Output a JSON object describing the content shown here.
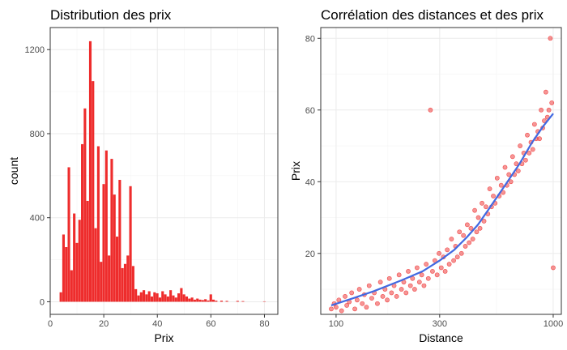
{
  "chart_data": [
    {
      "type": "bar",
      "title": "Distribution des prix",
      "xlabel": "Prix",
      "ylabel": "count",
      "xlim": [
        0,
        85
      ],
      "ylim": [
        -60,
        1305
      ],
      "x_ticks": [
        "0",
        "20",
        "40",
        "60",
        "80"
      ],
      "y_ticks": [
        "0",
        "400",
        "800",
        "1200"
      ],
      "bar_color": "#ee2c2c",
      "bin_width": 1,
      "bins": [
        {
          "x": 4,
          "count": 45
        },
        {
          "x": 5,
          "count": 320
        },
        {
          "x": 6,
          "count": 260
        },
        {
          "x": 7,
          "count": 640
        },
        {
          "x": 8,
          "count": 150
        },
        {
          "x": 9,
          "count": 420
        },
        {
          "x": 10,
          "count": 280
        },
        {
          "x": 11,
          "count": 390
        },
        {
          "x": 12,
          "count": 750
        },
        {
          "x": 13,
          "count": 920
        },
        {
          "x": 14,
          "count": 480
        },
        {
          "x": 15,
          "count": 1240
        },
        {
          "x": 16,
          "count": 1050
        },
        {
          "x": 17,
          "count": 350
        },
        {
          "x": 18,
          "count": 740
        },
        {
          "x": 19,
          "count": 190
        },
        {
          "x": 20,
          "count": 560
        },
        {
          "x": 21,
          "count": 720
        },
        {
          "x": 22,
          "count": 220
        },
        {
          "x": 23,
          "count": 680
        },
        {
          "x": 24,
          "count": 510
        },
        {
          "x": 25,
          "count": 310
        },
        {
          "x": 26,
          "count": 580
        },
        {
          "x": 27,
          "count": 160
        },
        {
          "x": 28,
          "count": 180
        },
        {
          "x": 29,
          "count": 220
        },
        {
          "x": 30,
          "count": 550
        },
        {
          "x": 31,
          "count": 170
        },
        {
          "x": 32,
          "count": 60
        },
        {
          "x": 33,
          "count": 30
        },
        {
          "x": 34,
          "count": 45
        },
        {
          "x": 35,
          "count": 55
        },
        {
          "x": 36,
          "count": 35
        },
        {
          "x": 37,
          "count": 50
        },
        {
          "x": 38,
          "count": 25
        },
        {
          "x": 39,
          "count": 45
        },
        {
          "x": 40,
          "count": 40
        },
        {
          "x": 41,
          "count": 20
        },
        {
          "x": 42,
          "count": 50
        },
        {
          "x": 43,
          "count": 35
        },
        {
          "x": 44,
          "count": 25
        },
        {
          "x": 45,
          "count": 55
        },
        {
          "x": 46,
          "count": 30
        },
        {
          "x": 47,
          "count": 20
        },
        {
          "x": 48,
          "count": 40
        },
        {
          "x": 49,
          "count": 65
        },
        {
          "x": 50,
          "count": 35
        },
        {
          "x": 51,
          "count": 25
        },
        {
          "x": 52,
          "count": 15
        },
        {
          "x": 53,
          "count": 20
        },
        {
          "x": 54,
          "count": 10
        },
        {
          "x": 55,
          "count": 15
        },
        {
          "x": 56,
          "count": 10
        },
        {
          "x": 57,
          "count": 8
        },
        {
          "x": 58,
          "count": 12
        },
        {
          "x": 59,
          "count": 6
        },
        {
          "x": 60,
          "count": 35
        },
        {
          "x": 61,
          "count": 10
        },
        {
          "x": 62,
          "count": 5
        },
        {
          "x": 64,
          "count": 5
        },
        {
          "x": 66,
          "count": 4
        },
        {
          "x": 70,
          "count": 4
        },
        {
          "x": 72,
          "count": 3
        },
        {
          "x": 80,
          "count": 2
        }
      ]
    },
    {
      "type": "scatter",
      "title": "Corrélation des distances et des prix",
      "xlabel": "Distance",
      "ylabel": "Prix",
      "x_scale": "log10",
      "xlim": [
        85,
        1090
      ],
      "ylim": [
        3,
        83
      ],
      "x_ticks": [
        "100",
        "300",
        "1000"
      ],
      "y_ticks": [
        "20",
        "40",
        "60",
        "80"
      ],
      "point_color": "#ee2c2c",
      "point_alpha": 0.5,
      "smooth_line_color": "#4169e1",
      "points": [
        {
          "x": 95,
          "y": 4.5
        },
        {
          "x": 98,
          "y": 6
        },
        {
          "x": 100,
          "y": 5
        },
        {
          "x": 103,
          "y": 7
        },
        {
          "x": 106,
          "y": 4
        },
        {
          "x": 110,
          "y": 8
        },
        {
          "x": 112,
          "y": 5.5
        },
        {
          "x": 115,
          "y": 6.5
        },
        {
          "x": 118,
          "y": 9
        },
        {
          "x": 122,
          "y": 4.5
        },
        {
          "x": 125,
          "y": 7
        },
        {
          "x": 128,
          "y": 10
        },
        {
          "x": 132,
          "y": 6
        },
        {
          "x": 135,
          "y": 8.5
        },
        {
          "x": 138,
          "y": 5
        },
        {
          "x": 142,
          "y": 11
        },
        {
          "x": 146,
          "y": 7.5
        },
        {
          "x": 150,
          "y": 9
        },
        {
          "x": 155,
          "y": 6
        },
        {
          "x": 160,
          "y": 12
        },
        {
          "x": 164,
          "y": 8
        },
        {
          "x": 168,
          "y": 10
        },
        {
          "x": 172,
          "y": 7
        },
        {
          "x": 176,
          "y": 13
        },
        {
          "x": 180,
          "y": 9
        },
        {
          "x": 185,
          "y": 11
        },
        {
          "x": 190,
          "y": 8
        },
        {
          "x": 195,
          "y": 14
        },
        {
          "x": 200,
          "y": 10
        },
        {
          "x": 205,
          "y": 12
        },
        {
          "x": 210,
          "y": 9
        },
        {
          "x": 215,
          "y": 15
        },
        {
          "x": 220,
          "y": 11
        },
        {
          "x": 225,
          "y": 13
        },
        {
          "x": 230,
          "y": 10
        },
        {
          "x": 236,
          "y": 16
        },
        {
          "x": 242,
          "y": 12
        },
        {
          "x": 248,
          "y": 14
        },
        {
          "x": 254,
          "y": 11
        },
        {
          "x": 260,
          "y": 17
        },
        {
          "x": 266,
          "y": 13
        },
        {
          "x": 272,
          "y": 60
        },
        {
          "x": 278,
          "y": 15
        },
        {
          "x": 285,
          "y": 18
        },
        {
          "x": 292,
          "y": 14
        },
        {
          "x": 298,
          "y": 20
        },
        {
          "x": 305,
          "y": 16
        },
        {
          "x": 312,
          "y": 19
        },
        {
          "x": 318,
          "y": 15
        },
        {
          "x": 325,
          "y": 21
        },
        {
          "x": 332,
          "y": 17
        },
        {
          "x": 340,
          "y": 24
        },
        {
          "x": 348,
          "y": 18
        },
        {
          "x": 355,
          "y": 22
        },
        {
          "x": 362,
          "y": 19
        },
        {
          "x": 370,
          "y": 26
        },
        {
          "x": 378,
          "y": 20
        },
        {
          "x": 386,
          "y": 25
        },
        {
          "x": 394,
          "y": 22
        },
        {
          "x": 402,
          "y": 28
        },
        {
          "x": 410,
          "y": 23
        },
        {
          "x": 418,
          "y": 27
        },
        {
          "x": 426,
          "y": 24
        },
        {
          "x": 435,
          "y": 32
        },
        {
          "x": 444,
          "y": 26
        },
        {
          "x": 452,
          "y": 30
        },
        {
          "x": 460,
          "y": 27
        },
        {
          "x": 470,
          "y": 34
        },
        {
          "x": 480,
          "y": 29
        },
        {
          "x": 490,
          "y": 33
        },
        {
          "x": 500,
          "y": 31
        },
        {
          "x": 510,
          "y": 38
        },
        {
          "x": 520,
          "y": 33
        },
        {
          "x": 530,
          "y": 36
        },
        {
          "x": 540,
          "y": 34
        },
        {
          "x": 552,
          "y": 41
        },
        {
          "x": 564,
          "y": 36
        },
        {
          "x": 576,
          "y": 39
        },
        {
          "x": 588,
          "y": 37
        },
        {
          "x": 600,
          "y": 44
        },
        {
          "x": 612,
          "y": 39
        },
        {
          "x": 625,
          "y": 42
        },
        {
          "x": 638,
          "y": 40
        },
        {
          "x": 650,
          "y": 47
        },
        {
          "x": 663,
          "y": 42
        },
        {
          "x": 676,
          "y": 45
        },
        {
          "x": 690,
          "y": 43
        },
        {
          "x": 704,
          "y": 50
        },
        {
          "x": 718,
          "y": 45
        },
        {
          "x": 732,
          "y": 48
        },
        {
          "x": 746,
          "y": 46
        },
        {
          "x": 760,
          "y": 53
        },
        {
          "x": 775,
          "y": 48
        },
        {
          "x": 790,
          "y": 51
        },
        {
          "x": 805,
          "y": 49
        },
        {
          "x": 820,
          "y": 56
        },
        {
          "x": 835,
          "y": 52
        },
        {
          "x": 850,
          "y": 54
        },
        {
          "x": 865,
          "y": 52
        },
        {
          "x": 880,
          "y": 60
        },
        {
          "x": 895,
          "y": 55
        },
        {
          "x": 910,
          "y": 57
        },
        {
          "x": 925,
          "y": 65
        },
        {
          "x": 940,
          "y": 58
        },
        {
          "x": 955,
          "y": 60
        },
        {
          "x": 970,
          "y": 80
        },
        {
          "x": 985,
          "y": 62
        },
        {
          "x": 1000,
          "y": 16
        }
      ],
      "smooth_line": [
        {
          "x": 95,
          "y": 5.5
        },
        {
          "x": 120,
          "y": 7.5
        },
        {
          "x": 150,
          "y": 9.5
        },
        {
          "x": 200,
          "y": 12.5
        },
        {
          "x": 250,
          "y": 15
        },
        {
          "x": 300,
          "y": 18
        },
        {
          "x": 350,
          "y": 21
        },
        {
          "x": 400,
          "y": 24.5
        },
        {
          "x": 450,
          "y": 28
        },
        {
          "x": 500,
          "y": 32
        },
        {
          "x": 600,
          "y": 39
        },
        {
          "x": 700,
          "y": 45
        },
        {
          "x": 800,
          "y": 51
        },
        {
          "x": 900,
          "y": 55.5
        },
        {
          "x": 1000,
          "y": 59
        }
      ]
    }
  ]
}
